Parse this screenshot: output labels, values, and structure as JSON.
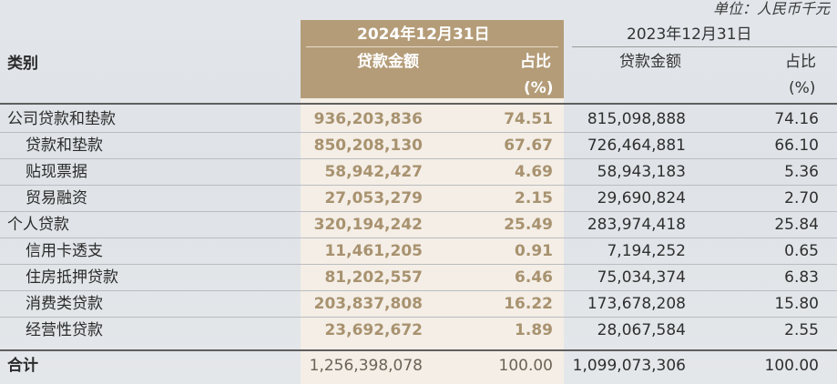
{
  "unit_note": "单位：人民币千元",
  "header": {
    "category_label": "类别",
    "period_2024": "2024年12月31日",
    "period_2023": "2023年12月31日",
    "amount_label_2024": "贷款金额",
    "share_label_2024": "占比",
    "share_unit_2024": "(%)",
    "amount_label_2023": "贷款金额",
    "share_label_2023": "占比",
    "share_unit_2023": "(%)"
  },
  "rows": [
    {
      "category": "公司贷款和垫款",
      "amount_2024": "936,203,836",
      "share_2024": "74.51",
      "amount_2023": "815,098,888",
      "share_2023": "74.16"
    },
    {
      "category": "贷款和垫款",
      "amount_2024": "850,208,130",
      "share_2024": "67.67",
      "amount_2023": "726,464,881",
      "share_2023": "66.10"
    },
    {
      "category": "贴现票据",
      "amount_2024": "58,942,427",
      "share_2024": "4.69",
      "amount_2023": "58,943,183",
      "share_2023": "5.36"
    },
    {
      "category": "贸易融资",
      "amount_2024": "27,053,279",
      "share_2024": "2.15",
      "amount_2023": "29,690,824",
      "share_2023": "2.70"
    },
    {
      "category": "个人贷款",
      "amount_2024": "320,194,242",
      "share_2024": "25.49",
      "amount_2023": "283,974,418",
      "share_2023": "25.84"
    },
    {
      "category": "信用卡透支",
      "amount_2024": "11,461,205",
      "share_2024": "0.91",
      "amount_2023": "7,194,252",
      "share_2023": "0.65"
    },
    {
      "category": "住房抵押贷款",
      "amount_2024": "81,202,557",
      "share_2024": "6.46",
      "amount_2023": "75,034,374",
      "share_2023": "6.83"
    },
    {
      "category": "消费类贷款",
      "amount_2024": "203,837,808",
      "share_2024": "16.22",
      "amount_2023": "173,678,208",
      "share_2023": "15.80"
    },
    {
      "category": "经营性贷款",
      "amount_2024": "23,692,672",
      "share_2024": "1.89",
      "amount_2023": "28,067,584",
      "share_2023": "2.55"
    }
  ],
  "total": {
    "category": "合计",
    "amount_2024": "1,256,398,078",
    "share_2024": "100.00",
    "amount_2023": "1,099,073,306",
    "share_2023": "100.00"
  },
  "colors": {
    "highlight_header": "#b49c78",
    "highlight_body": "#f4eee6",
    "highlight_text": "#a8926f"
  }
}
